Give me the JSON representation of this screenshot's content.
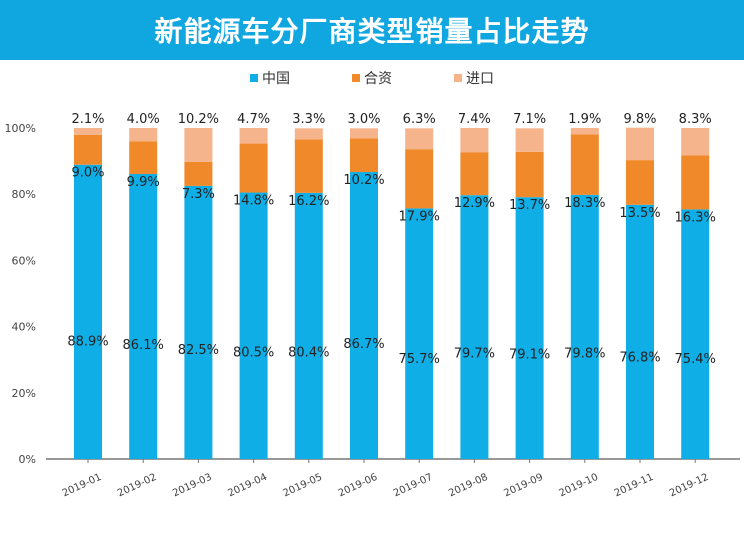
{
  "chart_data": {
    "type": "bar",
    "stacked": true,
    "title": "新能源车分厂商类型销量占比走势",
    "categories": [
      "2019-01",
      "2019-02",
      "2019-03",
      "2019-04",
      "2019-05",
      "2019-06",
      "2019-07",
      "2019-08",
      "2019-09",
      "2019-10",
      "2019-11",
      "2019-12"
    ],
    "series": [
      {
        "name": "中国",
        "color": "#10aee6",
        "values": [
          88.9,
          86.1,
          82.5,
          80.5,
          80.4,
          86.7,
          75.7,
          79.7,
          79.1,
          79.8,
          76.8,
          75.4
        ]
      },
      {
        "name": "合资",
        "color": "#f0892a",
        "values": [
          9.0,
          9.9,
          7.3,
          14.8,
          16.2,
          10.2,
          17.9,
          12.9,
          13.7,
          18.3,
          13.5,
          16.3
        ]
      },
      {
        "name": "进口",
        "color": "#f5b48c",
        "values": [
          2.1,
          4.0,
          10.2,
          4.7,
          3.3,
          3.0,
          6.3,
          7.4,
          7.1,
          1.9,
          9.8,
          8.3
        ]
      }
    ],
    "ylim": [
      0,
      100
    ],
    "yticks": [
      "0%",
      "20%",
      "40%",
      "60%",
      "80%",
      "100%"
    ],
    "legend": "top",
    "grid": false
  }
}
